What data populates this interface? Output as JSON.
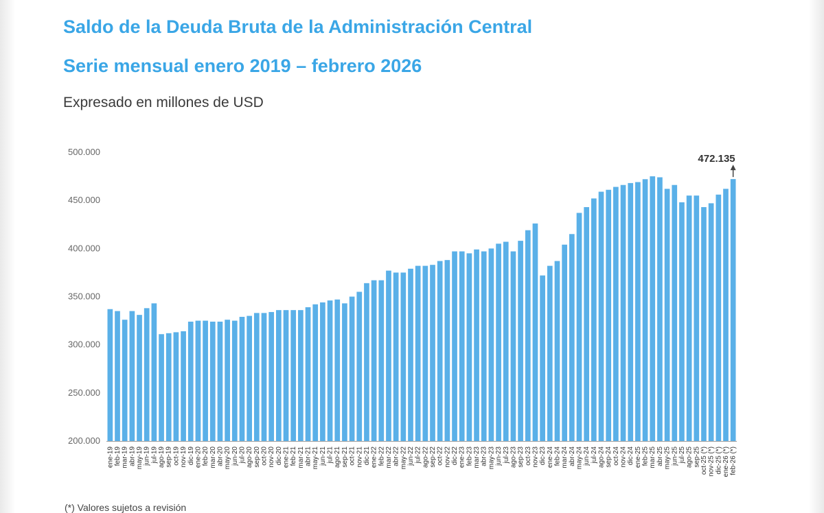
{
  "header": {
    "title": "Saldo de la Deuda Bruta de la Administración Central",
    "subtitle": "Serie mensual enero 2019 – febrero 2026",
    "units": "Expresado en millones de USD"
  },
  "footnote": "(*) Valores sujetos a revisión",
  "colors": {
    "bar": "#5ab0e8",
    "title": "#3aa6e6",
    "axis": "#9a9a9a"
  },
  "chart_data": {
    "type": "bar",
    "ylim": [
      200000,
      500000
    ],
    "yticks": [
      "200.000",
      "250.000",
      "300.000",
      "350.000",
      "400.000",
      "450.000",
      "500.000"
    ],
    "ytick_values": [
      200000,
      250000,
      300000,
      350000,
      400000,
      450000,
      500000
    ],
    "grid": false,
    "categories": [
      "ene-19",
      "feb-19",
      "mar-19",
      "abr-19",
      "may-19",
      "jun-19",
      "jul-19",
      "ago-19",
      "sep-19",
      "oct-19",
      "nov-19",
      "dic-19",
      "ene-20",
      "feb-20",
      "mar-20",
      "abr-20",
      "may-20",
      "jun-20",
      "jul-20",
      "ago-20",
      "sep-20",
      "oct-20",
      "nov-20",
      "dic-20",
      "ene-21",
      "feb-21",
      "mar-21",
      "abr-21",
      "may-21",
      "jun-21",
      "jul-21",
      "ago-21",
      "sep-21",
      "oct-21",
      "nov-21",
      "dic-21",
      "ene-22",
      "feb-22",
      "mar-22",
      "abr-22",
      "may-22",
      "jun-22",
      "jul-22",
      "ago-22",
      "sep-22",
      "oct-22",
      "nov-22",
      "dic-22",
      "ene-23",
      "feb-23",
      "mar-23",
      "abr-23",
      "may-23",
      "jun-23",
      "jul-23",
      "ago-23",
      "sep-23",
      "oct-23",
      "nov-23",
      "dic-23",
      "ene-24",
      "feb-24",
      "mar-24",
      "abr-24",
      "may-24",
      "jun-24",
      "jul-24",
      "ago-24",
      "sep-24",
      "oct-24",
      "nov-24",
      "dic-24",
      "ene-25",
      "feb-25",
      "mar-25",
      "abr-25",
      "may-25",
      "jun-25",
      "jul-25",
      "ago-25",
      "sep-25",
      "oct-25 (*)",
      "nov-25 (*)",
      "dic-25 (*)",
      "ene-26 (*)",
      "feb-26 (*)"
    ],
    "values": [
      337000,
      335000,
      326000,
      335000,
      331000,
      338000,
      343000,
      311000,
      312000,
      313000,
      314000,
      324000,
      325000,
      325000,
      324000,
      324000,
      326000,
      325000,
      329000,
      330000,
      333000,
      333000,
      334000,
      336000,
      336000,
      336000,
      336000,
      339000,
      342000,
      344000,
      346000,
      347000,
      343000,
      350000,
      355000,
      364000,
      367000,
      367000,
      377000,
      375000,
      375000,
      379000,
      382000,
      382000,
      383000,
      387000,
      388000,
      397000,
      397000,
      395000,
      399000,
      397000,
      400000,
      405000,
      407000,
      397000,
      408000,
      419000,
      426000,
      372000,
      382000,
      387000,
      404000,
      415000,
      437000,
      443000,
      452000,
      459000,
      461000,
      464000,
      466000,
      468000,
      469000,
      472000,
      475000,
      474000,
      462000,
      466000,
      448000,
      455000,
      455000,
      443000,
      447000,
      456000,
      462000,
      472135
    ],
    "data_labels": [
      {
        "category": "feb-26 (*)",
        "text": "472.135"
      }
    ]
  }
}
